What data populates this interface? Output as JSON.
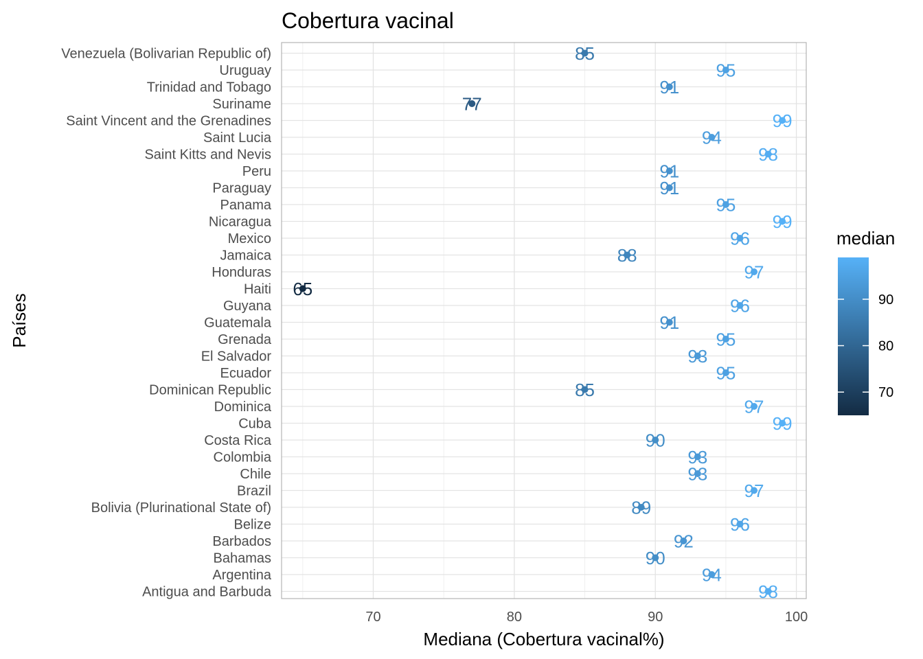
{
  "chart_data": {
    "type": "scatter",
    "title": "Cobertura vacinal",
    "xlabel": "Mediana (Cobertura vacinal%)",
    "ylabel": "Países",
    "xlim": [
      63.5,
      100.7
    ],
    "x_ticks": [
      70,
      80,
      90,
      100
    ],
    "grid": true,
    "legend": {
      "title": "median",
      "placement": "right",
      "type": "colorbar",
      "ticks": [
        70,
        80,
        90
      ],
      "range": [
        65,
        99
      ],
      "color_low": "#132B43",
      "color_high": "#56B1F7"
    },
    "points": [
      {
        "country": "Venezuela (Bolivarian Republic of)",
        "median": 85
      },
      {
        "country": "Uruguay",
        "median": 95
      },
      {
        "country": "Trinidad and Tobago",
        "median": 91
      },
      {
        "country": "Suriname",
        "median": 77
      },
      {
        "country": "Saint Vincent and the Grenadines",
        "median": 99
      },
      {
        "country": "Saint Lucia",
        "median": 94
      },
      {
        "country": "Saint Kitts and Nevis",
        "median": 98
      },
      {
        "country": "Peru",
        "median": 91
      },
      {
        "country": "Paraguay",
        "median": 91
      },
      {
        "country": "Panama",
        "median": 95
      },
      {
        "country": "Nicaragua",
        "median": 99
      },
      {
        "country": "Mexico",
        "median": 96
      },
      {
        "country": "Jamaica",
        "median": 88
      },
      {
        "country": "Honduras",
        "median": 97
      },
      {
        "country": "Haiti",
        "median": 65
      },
      {
        "country": "Guyana",
        "median": 96
      },
      {
        "country": "Guatemala",
        "median": 91
      },
      {
        "country": "Grenada",
        "median": 95
      },
      {
        "country": "El Salvador",
        "median": 93
      },
      {
        "country": "Ecuador",
        "median": 95
      },
      {
        "country": "Dominican Republic",
        "median": 85
      },
      {
        "country": "Dominica",
        "median": 97
      },
      {
        "country": "Cuba",
        "median": 99
      },
      {
        "country": "Costa Rica",
        "median": 90
      },
      {
        "country": "Colombia",
        "median": 93
      },
      {
        "country": "Chile",
        "median": 93
      },
      {
        "country": "Brazil",
        "median": 97
      },
      {
        "country": "Bolivia (Plurinational State of)",
        "median": 89
      },
      {
        "country": "Belize",
        "median": 96
      },
      {
        "country": "Barbados",
        "median": 92
      },
      {
        "country": "Bahamas",
        "median": 90
      },
      {
        "country": "Argentina",
        "median": 94
      },
      {
        "country": "Antigua and Barbuda",
        "median": 98
      }
    ]
  }
}
